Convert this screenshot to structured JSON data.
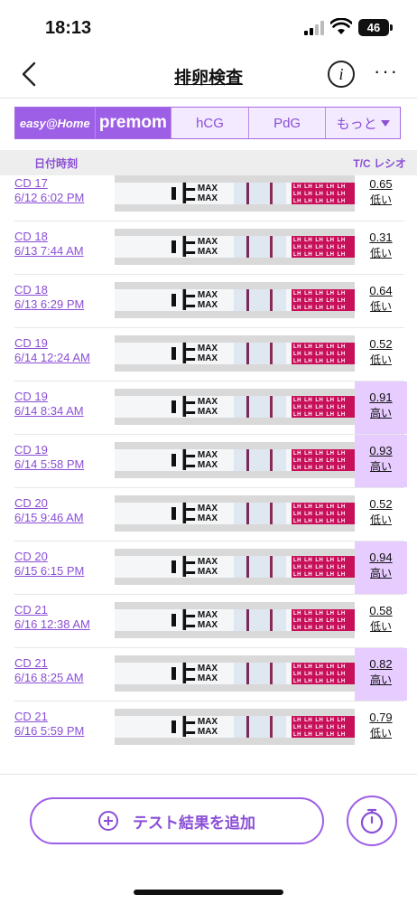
{
  "status_bar": {
    "time": "18:13",
    "battery": "46"
  },
  "nav": {
    "title": "排卵検査",
    "info_label": "i",
    "more_label": "···"
  },
  "tabs": [
    {
      "label": "easy@Home"
    },
    {
      "label": "premom"
    },
    {
      "label": "hCG"
    },
    {
      "label": "PdG"
    },
    {
      "label": "もっと"
    }
  ],
  "table_header": {
    "date": "日付時刻",
    "ratio": "T/C レシオ"
  },
  "strip_text": {
    "max": "MAX",
    "lh": "LH LH LH LH LH LH LH LH LH LH LH LH LH LH LH"
  },
  "rows": [
    {
      "cd": "CD 17",
      "datetime": "6/12 6:02 PM",
      "ratio": "0.65",
      "level": "低い",
      "high": false
    },
    {
      "cd": "CD 18",
      "datetime": "6/13 7:44 AM",
      "ratio": "0.31",
      "level": "低い",
      "high": false
    },
    {
      "cd": "CD 18",
      "datetime": "6/13 6:29 PM",
      "ratio": "0.64",
      "level": "低い",
      "high": false
    },
    {
      "cd": "CD 19",
      "datetime": "6/14 12:24 AM",
      "ratio": "0.52",
      "level": "低い",
      "high": false
    },
    {
      "cd": "CD 19",
      "datetime": "6/14 8:34 AM",
      "ratio": "0.91",
      "level": "高い",
      "high": true
    },
    {
      "cd": "CD 19",
      "datetime": "6/14 5:58 PM",
      "ratio": "0.93",
      "level": "高い",
      "high": true
    },
    {
      "cd": "CD 20",
      "datetime": "6/15 9:46 AM",
      "ratio": "0.52",
      "level": "低い",
      "high": false
    },
    {
      "cd": "CD 20",
      "datetime": "6/15 6:15 PM",
      "ratio": "0.94",
      "level": "高い",
      "high": true
    },
    {
      "cd": "CD 21",
      "datetime": "6/16 12:38 AM",
      "ratio": "0.58",
      "level": "低い",
      "high": false
    },
    {
      "cd": "CD 21",
      "datetime": "6/16 8:25 AM",
      "ratio": "0.82",
      "level": "高い",
      "high": true
    },
    {
      "cd": "CD 21",
      "datetime": "6/16 5:59 PM",
      "ratio": "0.79",
      "level": "低い",
      "high": false
    }
  ],
  "add_button": {
    "label": "テスト結果を追加"
  },
  "colors": {
    "accent": "#9d5fe6",
    "high_bg": "#e6ccff",
    "lh_band": "#c8105a"
  }
}
